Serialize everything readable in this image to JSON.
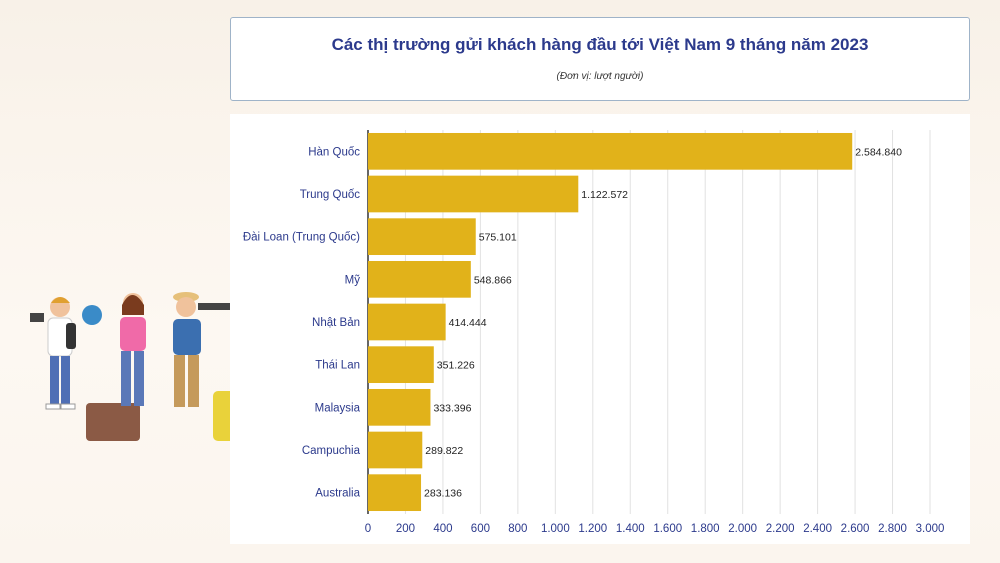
{
  "header": {
    "title": "Các thị trường gửi khách hàng đầu tới Việt Nam 9 tháng năm 2023",
    "subtitle": "(Đơn vị:  lượt người)"
  },
  "colors": {
    "bar": "#e1b21a",
    "title": "#2c3a8c",
    "grid": "#e2e2e2",
    "axis": "#333333"
  },
  "chart_data": {
    "type": "bar",
    "orientation": "horizontal",
    "categories": [
      "Hàn Quốc",
      "Trung Quốc",
      "Đài Loan (Trung Quốc)",
      "Mỹ",
      "Nhật Bản",
      "Thái Lan",
      "Malaysia",
      "Campuchia",
      "Australia"
    ],
    "values": [
      2584840,
      1122572,
      575101,
      548866,
      414444,
      351226,
      333396,
      289822,
      283136
    ],
    "value_labels": [
      "2.584.840",
      "1.122.572",
      "575.101",
      "548.866",
      "414.444",
      "351.226",
      "333.396",
      "289.822",
      "283.136"
    ],
    "x_ticks": [
      "0",
      "200",
      "400",
      "600",
      "800",
      "1.000",
      "1.200",
      "1.400",
      "1.600",
      "1.800",
      "2.000",
      "2.200",
      "2.400",
      "2.600",
      "2.800",
      "3.000"
    ],
    "xlim": [
      0,
      3000000
    ],
    "grid": true,
    "title": "Các thị trường gửi khách hàng đầu tới Việt Nam 9 tháng năm 2023",
    "subtitle": "(Đơn vị:  lượt người)"
  }
}
